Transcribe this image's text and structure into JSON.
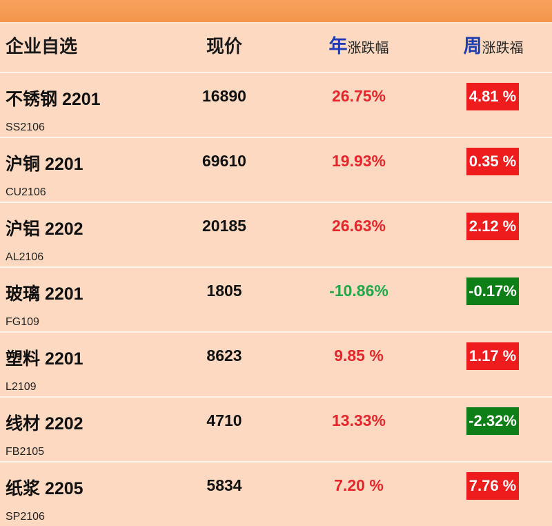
{
  "header": {
    "name_label": "企业自选",
    "price_label": "现价",
    "year_prefix": "年",
    "year_suffix": "涨跌幅",
    "week_prefix": "周",
    "week_suffix": "涨跌福"
  },
  "colors": {
    "up": "#e5262c",
    "down": "#22a84a",
    "badge_up": "#ee1c1c",
    "badge_down": "#0d7f16"
  },
  "rows": [
    {
      "name": "不锈钢 2201",
      "code": "SS2106",
      "price": "16890",
      "year": "26.75%",
      "year_dir": "up",
      "week": "4.81 %",
      "week_dir": "up"
    },
    {
      "name": "沪铜 2201",
      "code": "CU2106",
      "price": "69610",
      "year": "19.93%",
      "year_dir": "up",
      "week": "0.35 %",
      "week_dir": "up"
    },
    {
      "name": "沪铝 2202",
      "code": "AL2106",
      "price": "20185",
      "year": "26.63%",
      "year_dir": "up",
      "week": "2.12 %",
      "week_dir": "up"
    },
    {
      "name": "玻璃 2201",
      "code": "FG109",
      "price": "1805",
      "year": "-10.86%",
      "year_dir": "down",
      "week": "-0.17%",
      "week_dir": "down"
    },
    {
      "name": "塑料 2201",
      "code": "L2109",
      "price": "8623",
      "year": "9.85 %",
      "year_dir": "up",
      "week": "1.17 %",
      "week_dir": "up"
    },
    {
      "name": "线材 2202",
      "code": "FB2105",
      "price": "4710",
      "year": "13.33%",
      "year_dir": "up",
      "week": "-2.32%",
      "week_dir": "down"
    },
    {
      "name": "纸浆 2205",
      "code": "SP2106",
      "price": "5834",
      "year": "7.20 %",
      "year_dir": "up",
      "week": "7.76 %",
      "week_dir": "up"
    }
  ]
}
